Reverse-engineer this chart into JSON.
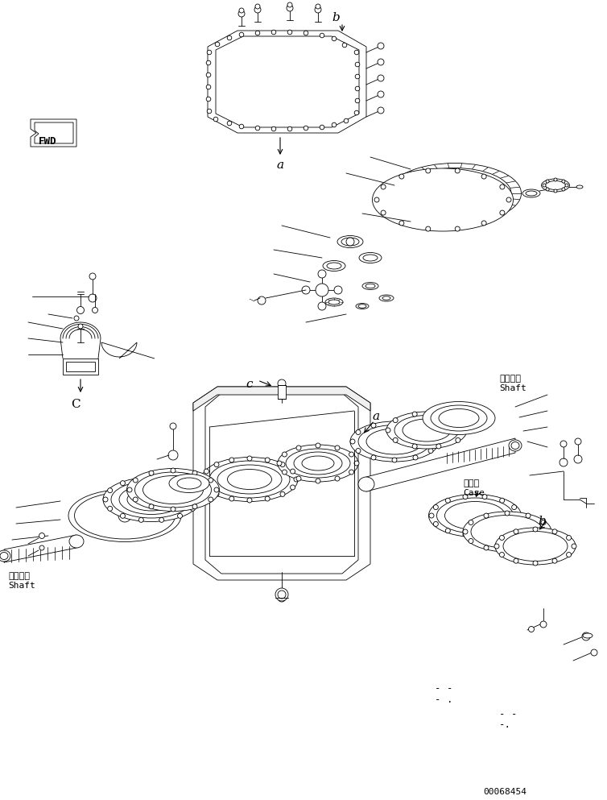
{
  "bg_color": "#ffffff",
  "lc": "#000000",
  "fig_w": 7.54,
  "fig_h": 9.93,
  "dpi": 100,
  "labels": {
    "fwd": "FWD",
    "shaft_jp": "シャフト",
    "shaft_en": "Shaft",
    "case_jp": "ケース",
    "case_en": "Case",
    "part_num": "00068454"
  }
}
